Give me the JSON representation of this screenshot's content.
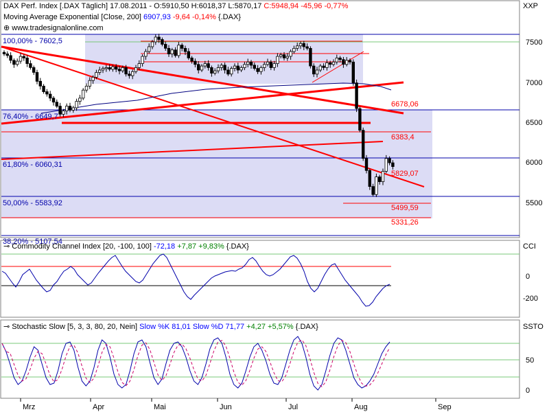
{
  "main_panel": {
    "instrument": "DAX Perf. Index [.DAX",
    "interval": "Täglich]",
    "date": "17.08.2011",
    "ohlc": {
      "O": "5910,50",
      "H": "6018,37",
      "L": "5870,17",
      "C": "5948,94",
      "chg": "-45,96",
      "chg_pct": "-0,77%"
    },
    "indicator_label": "Moving Average Exponential [Close, 200]",
    "indicator_value": "6907,93",
    "indicator_chg": "-9,64",
    "indicator_chg_pct": "-0,14%",
    "indicator_suffix": "{.DAX}",
    "source": "www.tradesignalonline.com",
    "axis_label": "XXP"
  },
  "cci_panel": {
    "label": "Commodity Channel Index [20, -100, 100]",
    "value": "-72,18",
    "chg": "+7,87",
    "chg_pct": "+9,83%",
    "suffix": "{.DAX}",
    "axis_label": "CCI"
  },
  "stoch_panel": {
    "label": "Stochastic Slow [5, 3, 3, 80, 20, Nein]",
    "k_label": "Slow %K",
    "k_value": "81,01",
    "d_label": "Slow %D",
    "d_value": "71,77",
    "chg": "+4,27",
    "chg_pct": "+5,57%",
    "suffix": "{.DAX}",
    "axis_label": "SSTO"
  },
  "months": [
    "Mrz",
    "Apr",
    "Mai",
    "Jun",
    "Jul",
    "Aug",
    "Sep"
  ],
  "colors": {
    "up": "#0000ff",
    "down": "#ff0000",
    "bear": "#000000",
    "trend": "#ff0000",
    "fib": "#0000aa",
    "zone": "#dcdcf5",
    "grid": "#78c878"
  },
  "chart_data": {
    "type": "candlestick",
    "y_ticks": [
      5500,
      6000,
      6500,
      7000,
      7500
    ],
    "ylim": [
      5090,
      7680
    ],
    "fib_levels": [
      {
        "label": "100,00% - 7602,5",
        "value": 7602.5
      },
      {
        "label": "76,40% - 6649,7",
        "value": 6649.7
      },
      {
        "label": "61,80% - 6060,31",
        "value": 6060.31
      },
      {
        "label": "50,00% - 5583,92",
        "value": 5583.92
      }
    ],
    "fib_partial": "38,20% - 5107,54",
    "level_labels": [
      {
        "label": "6678,06",
        "value": 6678.06
      },
      {
        "label": "6383,4",
        "value": 6383.4
      },
      {
        "label": "5829,07",
        "value": 5829.07
      },
      {
        "label": "5499,59",
        "value": 5499.59
      },
      {
        "label": "5331,26",
        "value": 5331.26
      }
    ],
    "close": [
      7350,
      7330,
      7270,
      7220,
      7260,
      7320,
      7300,
      7230,
      7180,
      7120,
      7010,
      6950,
      6880,
      6850,
      6800,
      6750,
      6700,
      6600,
      6640,
      6700,
      6650,
      6680,
      6760,
      6800,
      6900,
      6950,
      7020,
      7060,
      7120,
      7150,
      7170,
      7180,
      7160,
      7190,
      7160,
      7140,
      7180,
      7100,
      7080,
      7130,
      7180,
      7230,
      7320,
      7380,
      7440,
      7500,
      7560,
      7530,
      7470,
      7420,
      7350,
      7400,
      7330,
      7460,
      7420,
      7380,
      7300,
      7260,
      7220,
      7150,
      7200,
      7230,
      7180,
      7110,
      7140,
      7180,
      7210,
      7150,
      7100,
      7170,
      7200,
      7150,
      7180,
      7220,
      7250,
      7210,
      7170,
      7130,
      7180,
      7220,
      7250,
      7180,
      7230,
      7320,
      7340,
      7300,
      7320,
      7380,
      7420,
      7450,
      7480,
      7440,
      7420,
      7200,
      7100,
      7150,
      7200,
      7180,
      7240,
      7220,
      7250,
      7300,
      7280,
      7220,
      7270,
      7250,
      6990,
      6670,
      6400,
      6050,
      5900,
      5700,
      5600,
      5820,
      5760,
      5890,
      6050,
      5995,
      5948
    ],
    "ema200": [
      7050,
      7045,
      7040,
      7035,
      7030,
      7025,
      7020,
      7015,
      7010,
      7005,
      7000,
      6995,
      6990,
      6988,
      6986,
      6984,
      6982,
      6980,
      6978,
      6976,
      6974,
      6972,
      6970,
      6968,
      6966,
      6964,
      6962,
      6960,
      6958,
      6956,
      6954,
      6952,
      6950,
      6948,
      6946,
      6944,
      6942,
      6940,
      6938,
      6936,
      6934,
      6932,
      6930,
      6930,
      6930,
      6930,
      6930,
      6930,
      6930,
      6930,
      6930,
      6930,
      6930,
      6930,
      6930,
      6930,
      6930,
      6930,
      6930,
      6930,
      6930,
      6930,
      6930,
      6930,
      6930,
      6930,
      6930,
      6930,
      6930,
      6930,
      6930,
      6930,
      6930,
      6930,
      6930,
      6930,
      6930,
      6930,
      6930,
      6930,
      6930,
      6930,
      6930,
      6930,
      6930,
      6930,
      6930,
      6930,
      6930,
      6930,
      6930,
      6930,
      6930,
      6930,
      6930,
      6930,
      6930,
      6930,
      6930,
      6930,
      6930,
      6930,
      6930,
      6930,
      6930,
      6930,
      6930,
      6930,
      6930,
      6930,
      6930,
      6930,
      6930,
      6930,
      6930,
      6930,
      6930,
      6930,
      6908
    ],
    "cci_ticks": [
      0,
      -200
    ],
    "stoch_ticks": [
      50,
      0
    ]
  }
}
